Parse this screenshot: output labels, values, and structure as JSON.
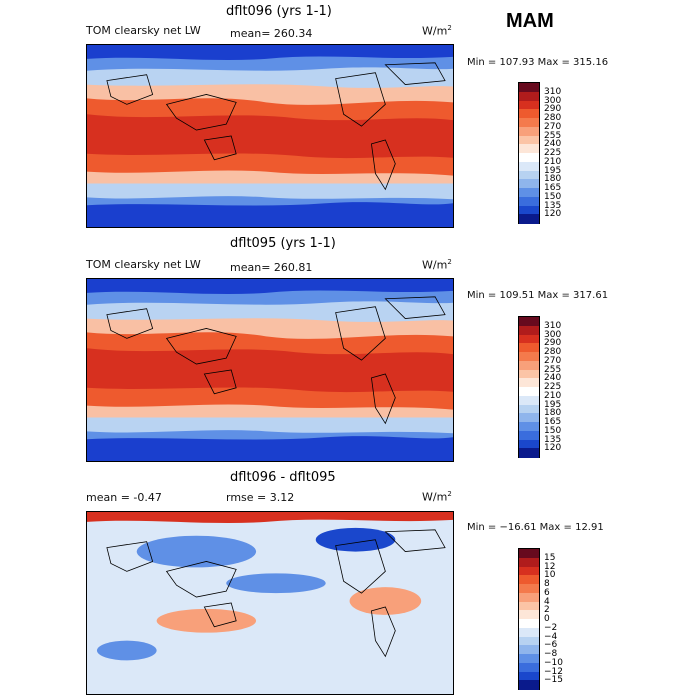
{
  "season": "MAM",
  "panels": [
    {
      "title": "dflt096 (yrs 1-1)",
      "field_label": "TOM clearsky net LW",
      "stat_text": "mean= 260.34",
      "units_text": "W/m",
      "units_exp": "2",
      "minmax": "Min = 107.93 Max = 315.16",
      "cbar_labels": [
        "310",
        "300",
        "290",
        "280",
        "270",
        "255",
        "240",
        "225",
        "210",
        "195",
        "180",
        "165",
        "150",
        "135",
        "120"
      ],
      "cbar_colors": [
        "#670a1e",
        "#b01c1c",
        "#d7301f",
        "#ee5a2e",
        "#f47a4c",
        "#f8a07a",
        "#fbc4a6",
        "#fde6d8",
        "#ffffff",
        "#dbe8f8",
        "#b7d2f1",
        "#8fb5ec",
        "#5f90e6",
        "#3a6ddd",
        "#1a47cc",
        "#0a1a8c"
      ],
      "colors": {
        "pole": "#1a3fce",
        "high": "#5f90e6",
        "mid": "#b9d3f2",
        "sub": "#f9c0a4",
        "trop": "#ee5a2e",
        "hot": "#d7301f"
      }
    },
    {
      "title": "dflt095 (yrs 1-1)",
      "field_label": "TOM clearsky net LW",
      "stat_text": "mean= 260.81",
      "units_text": "W/m",
      "units_exp": "2",
      "minmax": "Min = 109.51 Max = 317.61",
      "cbar_labels": [
        "310",
        "300",
        "290",
        "280",
        "270",
        "255",
        "240",
        "225",
        "210",
        "195",
        "180",
        "165",
        "150",
        "135",
        "120"
      ],
      "cbar_colors": [
        "#670a1e",
        "#b01c1c",
        "#d7301f",
        "#ee5a2e",
        "#f47a4c",
        "#f8a07a",
        "#fbc4a6",
        "#fde6d8",
        "#ffffff",
        "#dbe8f8",
        "#b7d2f1",
        "#8fb5ec",
        "#5f90e6",
        "#3a6ddd",
        "#1a47cc",
        "#0a1a8c"
      ],
      "colors": {
        "pole": "#1a3fce",
        "high": "#5f90e6",
        "mid": "#b9d3f2",
        "sub": "#f9c0a4",
        "trop": "#ee5a2e",
        "hot": "#d7301f"
      }
    },
    {
      "title": "dflt096 - dflt095",
      "stat_text": "mean =   -0.47",
      "rmse_text": "rmse =   3.12",
      "units_text": "W/m",
      "units_exp": "2",
      "minmax": "Min = −16.61 Max =   12.91",
      "cbar_labels": [
        "15",
        "12",
        "10",
        "8",
        "6",
        "4",
        "2",
        "0",
        "−2",
        "−4",
        "−6",
        "−8",
        "−10",
        "−12",
        "−15"
      ],
      "cbar_colors": [
        "#670a1e",
        "#b01c1c",
        "#d7301f",
        "#ee5a2e",
        "#f47a4c",
        "#f8a07a",
        "#fbc4a6",
        "#fde6d8",
        "#ffffff",
        "#dbe8f8",
        "#b7d2f1",
        "#8fb5ec",
        "#5f90e6",
        "#3a6ddd",
        "#1a47cc",
        "#0a1a8c"
      ],
      "colors": {
        "base": "#dbe8f8",
        "neg": "#5f90e6",
        "negdeep": "#1a47cc",
        "pos": "#f8a07a",
        "posdeep": "#d7301f"
      }
    }
  ]
}
